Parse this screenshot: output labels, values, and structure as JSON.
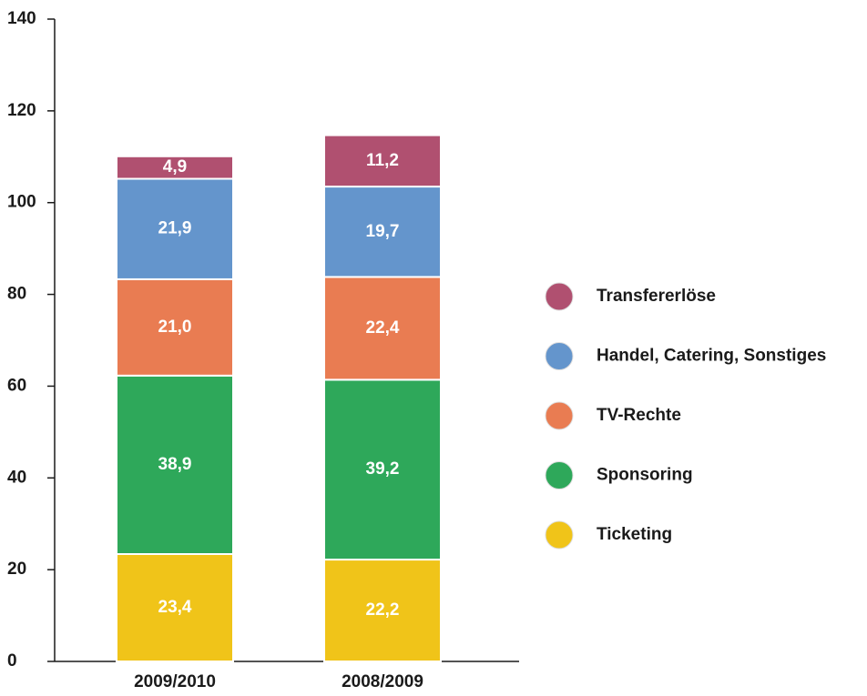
{
  "chart_data": {
    "type": "stacked_bar",
    "categories": [
      "2009/2010",
      "2008/2009"
    ],
    "series": [
      {
        "name": "Ticketing",
        "color": "#f0c419",
        "values": [
          23.4,
          22.2
        ],
        "value_labels": [
          "23,4",
          "22,2"
        ]
      },
      {
        "name": "Sponsoring",
        "color": "#2ea85a",
        "values": [
          38.9,
          39.2
        ],
        "value_labels": [
          "38,9",
          "39,2"
        ]
      },
      {
        "name": "TV-Rechte",
        "color": "#e97c52",
        "values": [
          21.0,
          22.4
        ],
        "value_labels": [
          "21,0",
          "22,4"
        ]
      },
      {
        "name": "Handel, Catering, Sonstiges",
        "color": "#6495cc",
        "values": [
          21.9,
          19.7
        ],
        "value_labels": [
          "21,9",
          "19,7"
        ]
      },
      {
        "name": "Transfererlöse",
        "color": "#b05070",
        "values": [
          4.9,
          11.2
        ],
        "value_labels": [
          "4,9",
          "11,2"
        ]
      }
    ],
    "ylim": [
      0,
      140
    ],
    "yticks": [
      0,
      20,
      40,
      60,
      80,
      100,
      120,
      140
    ],
    "grid": false,
    "legend": "right"
  }
}
